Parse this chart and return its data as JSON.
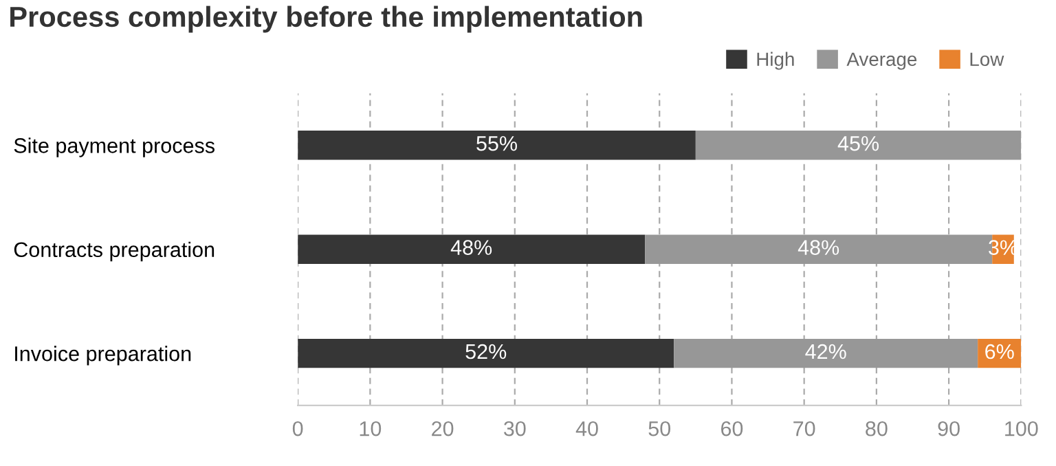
{
  "chart_data": {
    "type": "bar",
    "orientation": "horizontal",
    "stacked": true,
    "title": "Process complexity before the implementation",
    "categories": [
      "Site payment process",
      "Contracts preparation",
      "Invoice preparation"
    ],
    "series": [
      {
        "name": "High",
        "color": "#363636",
        "values": [
          55,
          48,
          52
        ],
        "value_labels": [
          "55%",
          "48%",
          "52%"
        ]
      },
      {
        "name": "Average",
        "color": "#979797",
        "values": [
          45,
          48,
          42
        ],
        "value_labels": [
          "45%",
          "48%",
          "42%"
        ]
      },
      {
        "name": "Low",
        "color": "#e8822e",
        "values": [
          null,
          3,
          6
        ],
        "value_labels": [
          null,
          "3%",
          "6%"
        ]
      }
    ],
    "xlim": [
      0,
      100
    ],
    "xticks": [
      0,
      10,
      20,
      30,
      40,
      50,
      60,
      70,
      80,
      90,
      100
    ],
    "grid": "x",
    "legend": "top"
  }
}
